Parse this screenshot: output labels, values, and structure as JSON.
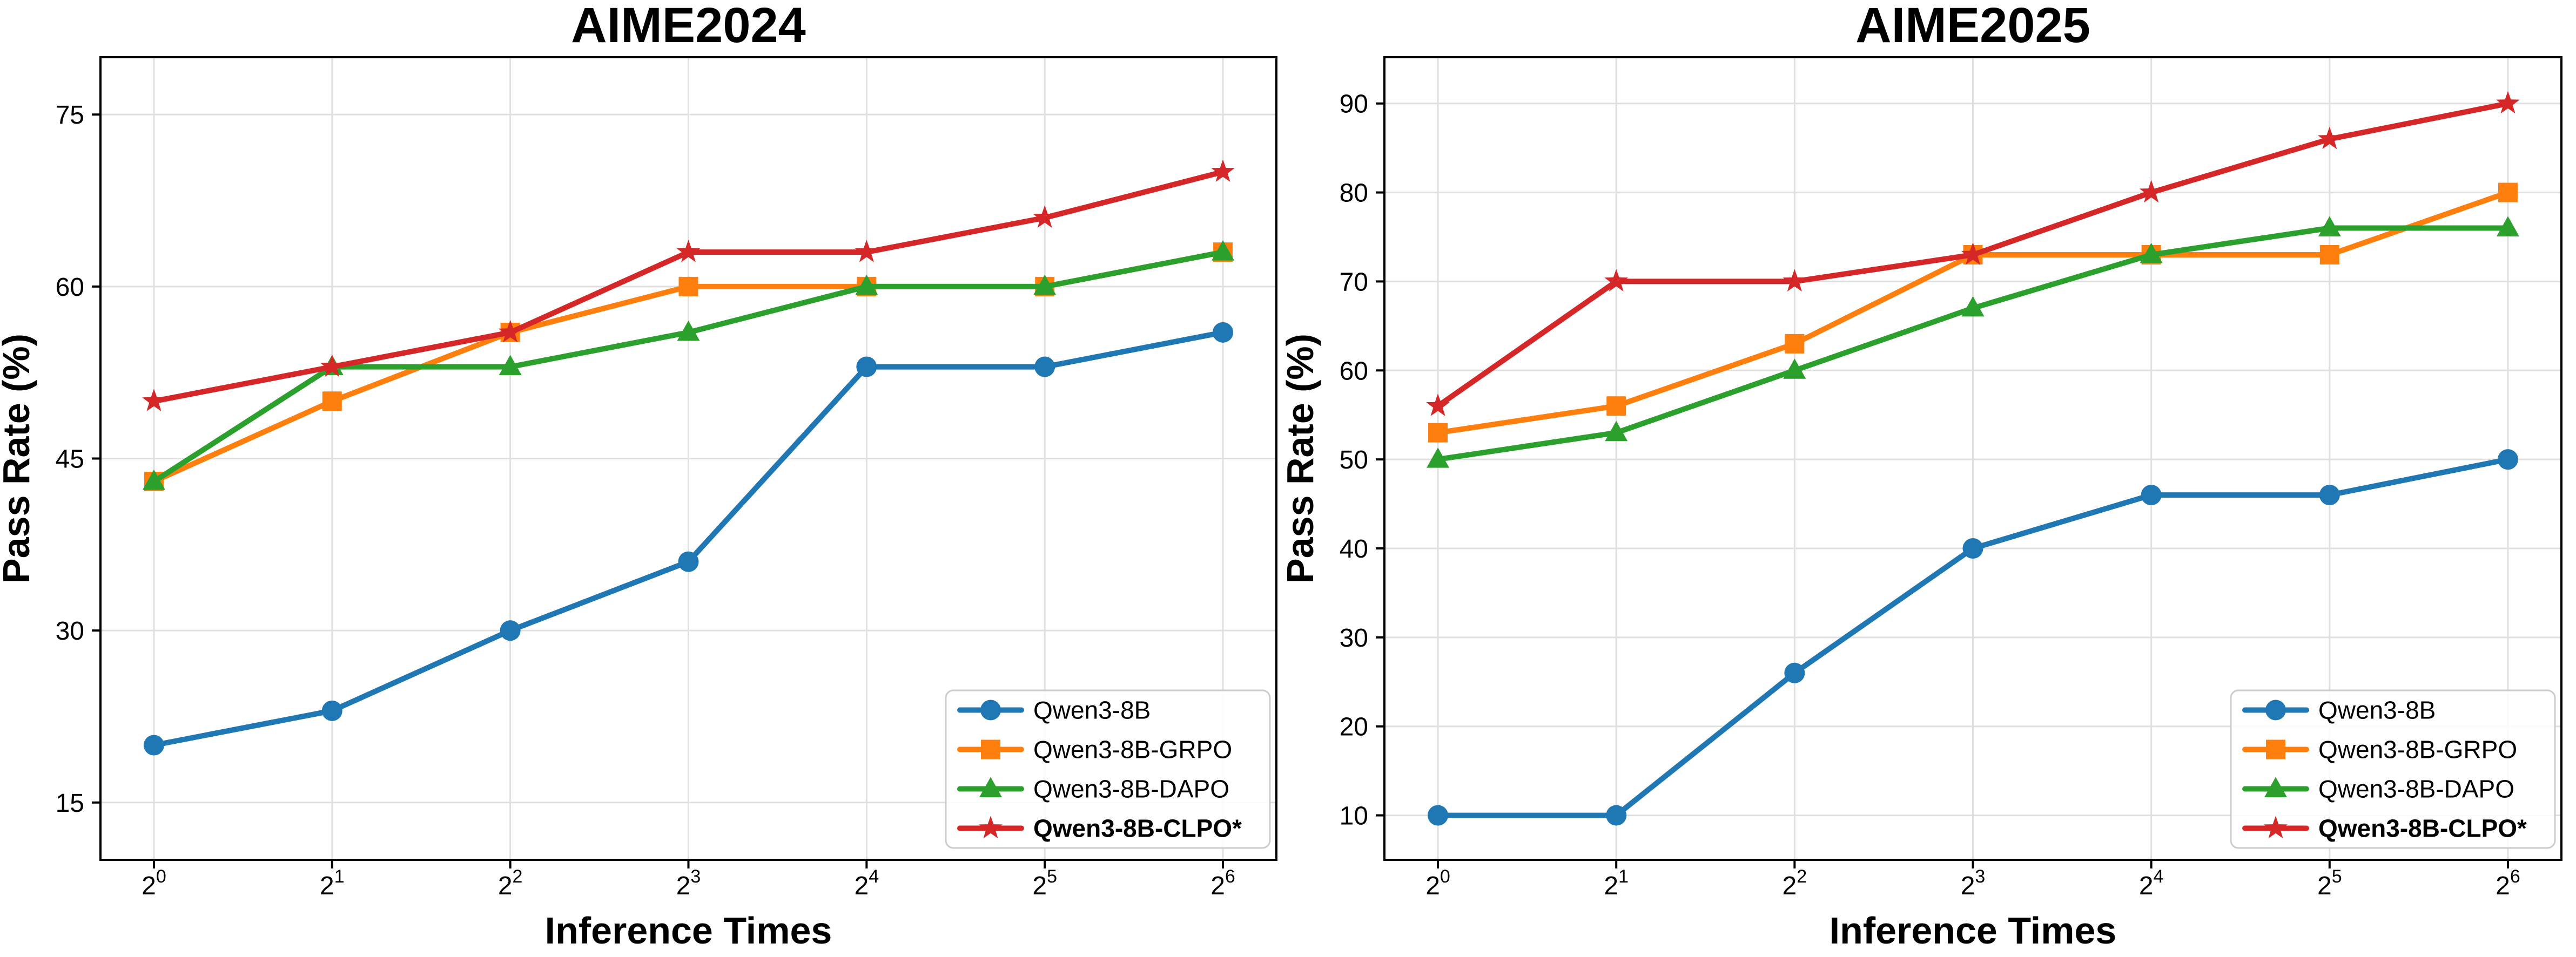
{
  "figure": {
    "background": "#ffffff",
    "grid_color": "#e0e0e0",
    "spine_color": "#000000",
    "legend_border_color": "#cccccc"
  },
  "chart_data": [
    {
      "type": "line",
      "title": "AIME2024",
      "xlabel": "Inference Times",
      "ylabel": "Pass Rate (%)",
      "x_tick_base": "2",
      "x_tick_exponents": [
        "0",
        "1",
        "2",
        "3",
        "4",
        "5",
        "6"
      ],
      "x_values": [
        1,
        2,
        4,
        8,
        16,
        32,
        64
      ],
      "xlim": [
        -0.3,
        6.3
      ],
      "ylim": [
        10,
        80
      ],
      "yticks": [
        15,
        30,
        45,
        60,
        75
      ],
      "grid": true,
      "legend_position": "lower right",
      "series": [
        {
          "name": "Qwen3-8B",
          "color": "#1f77b4",
          "marker": "circle",
          "bold": false,
          "values": [
            20,
            23,
            30,
            36,
            53,
            53,
            56
          ]
        },
        {
          "name": "Qwen3-8B-GRPO",
          "color": "#ff7f0e",
          "marker": "square",
          "bold": false,
          "values": [
            43,
            50,
            56,
            60,
            60,
            60,
            63
          ]
        },
        {
          "name": "Qwen3-8B-DAPO",
          "color": "#2ca02c",
          "marker": "triangle",
          "bold": false,
          "values": [
            43,
            53,
            53,
            56,
            60,
            60,
            63
          ]
        },
        {
          "name": "Qwen3-8B-CLPO*",
          "color": "#d62728",
          "marker": "star",
          "bold": true,
          "values": [
            50,
            53,
            56,
            63,
            63,
            66,
            70
          ]
        }
      ]
    },
    {
      "type": "line",
      "title": "AIME2025",
      "xlabel": "Inference Times",
      "ylabel": "Pass Rate (%)",
      "x_tick_base": "2",
      "x_tick_exponents": [
        "0",
        "1",
        "2",
        "3",
        "4",
        "5",
        "6"
      ],
      "x_values": [
        1,
        2,
        4,
        8,
        16,
        32,
        64
      ],
      "xlim": [
        -0.3,
        6.3
      ],
      "ylim": [
        5,
        95.2
      ],
      "yticks": [
        10,
        20,
        30,
        40,
        50,
        60,
        70,
        80,
        90
      ],
      "grid": true,
      "legend_position": "lower right",
      "series": [
        {
          "name": "Qwen3-8B",
          "color": "#1f77b4",
          "marker": "circle",
          "bold": false,
          "values": [
            10,
            10,
            26,
            40,
            46,
            46,
            50
          ]
        },
        {
          "name": "Qwen3-8B-GRPO",
          "color": "#ff7f0e",
          "marker": "square",
          "bold": false,
          "values": [
            53,
            56,
            63,
            73,
            73,
            73,
            80
          ]
        },
        {
          "name": "Qwen3-8B-DAPO",
          "color": "#2ca02c",
          "marker": "triangle",
          "bold": false,
          "values": [
            50,
            53,
            60,
            67,
            73,
            76,
            76
          ]
        },
        {
          "name": "Qwen3-8B-CLPO*",
          "color": "#d62728",
          "marker": "star",
          "bold": true,
          "values": [
            56,
            70,
            70,
            73,
            80,
            86,
            90
          ]
        }
      ]
    }
  ]
}
